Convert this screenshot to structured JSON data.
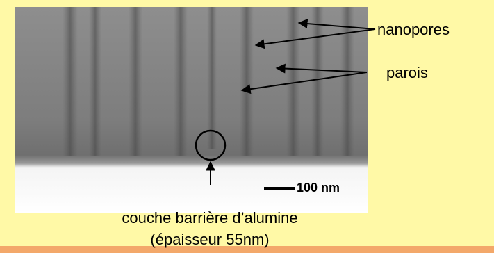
{
  "labels": {
    "nanopores": "nanopores",
    "parois": "parois"
  },
  "scale_bar": "100 nm",
  "caption": [
    "couche barrière d’alumine",
    "(épaisseur 55nm)"
  ]
}
